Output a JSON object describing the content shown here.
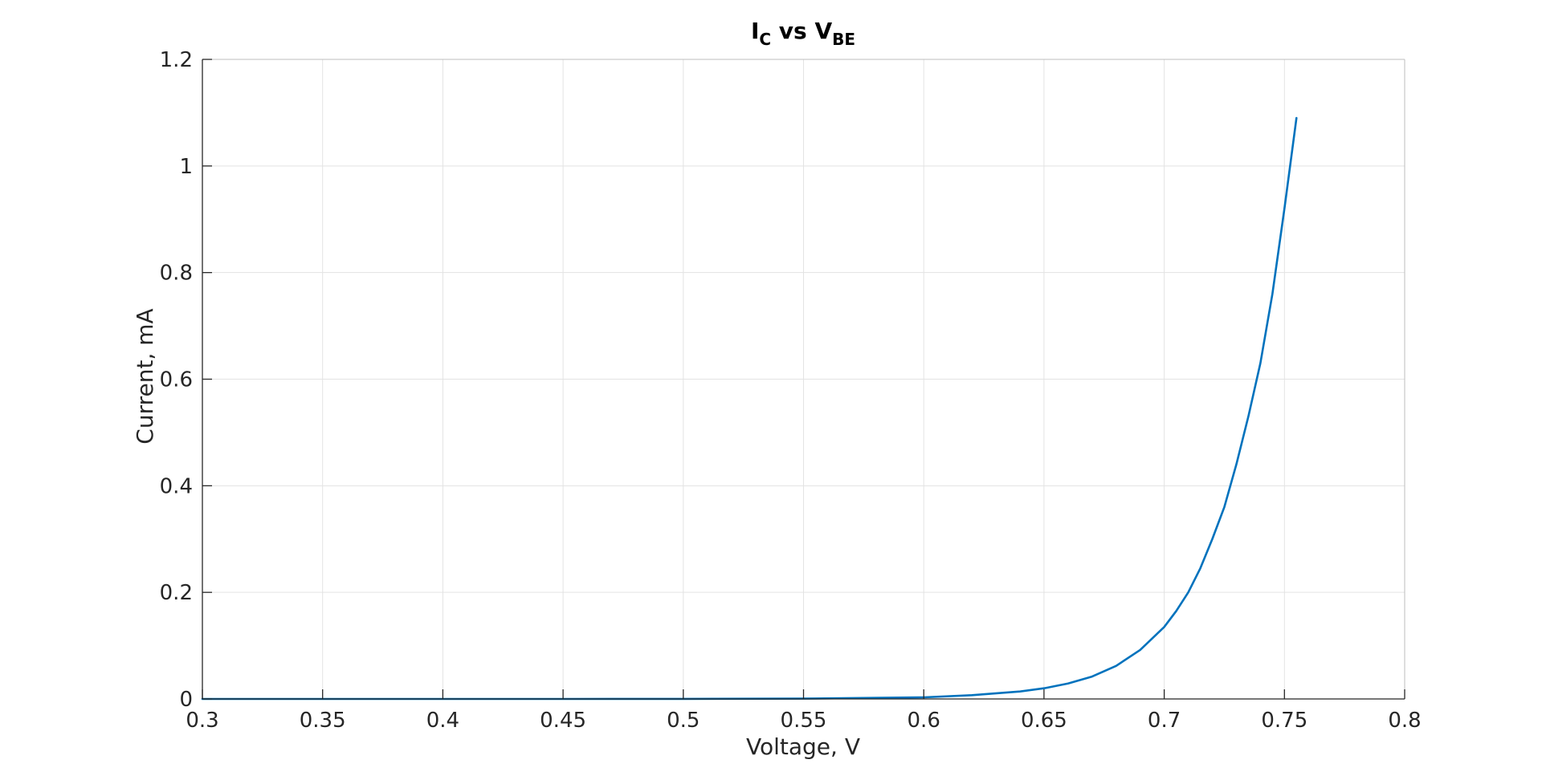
{
  "chart_data": {
    "type": "line",
    "title": {
      "main_1": "I",
      "sub_1": "C",
      "main_2": " vs V",
      "sub_2": "BE"
    },
    "xlabel": "Voltage, V",
    "ylabel": "Current, mA",
    "xlim": [
      0.3,
      0.8
    ],
    "ylim": [
      0,
      1.2
    ],
    "grid": true,
    "x_ticks": [
      0.3,
      0.35,
      0.4,
      0.45,
      0.5,
      0.55,
      0.6,
      0.65,
      0.7,
      0.75,
      0.8
    ],
    "x_tick_labels": [
      "0.3",
      "0.35",
      "0.4",
      "0.45",
      "0.5",
      "0.55",
      "0.6",
      "0.65",
      "0.7",
      "0.75",
      "0.8"
    ],
    "y_ticks": [
      0,
      0.2,
      0.4,
      0.6,
      0.8,
      1.0,
      1.2
    ],
    "y_tick_labels": [
      "0",
      "0.2",
      "0.4",
      "0.6",
      "0.8",
      "1",
      "1.2"
    ],
    "series": [
      {
        "name": "I_C",
        "color": "#0072BD",
        "x": [
          0.3,
          0.35,
          0.4,
          0.45,
          0.5,
          0.55,
          0.6,
          0.62,
          0.64,
          0.65,
          0.66,
          0.67,
          0.68,
          0.69,
          0.7,
          0.705,
          0.71,
          0.715,
          0.72,
          0.725,
          0.73,
          0.735,
          0.74,
          0.745,
          0.75,
          0.755
        ],
        "y": [
          0,
          0,
          0,
          0,
          0.0001,
          0.0006,
          0.003,
          0.007,
          0.014,
          0.02,
          0.029,
          0.042,
          0.062,
          0.092,
          0.135,
          0.165,
          0.2,
          0.245,
          0.3,
          0.36,
          0.44,
          0.53,
          0.63,
          0.76,
          0.92,
          1.09
        ]
      }
    ]
  }
}
